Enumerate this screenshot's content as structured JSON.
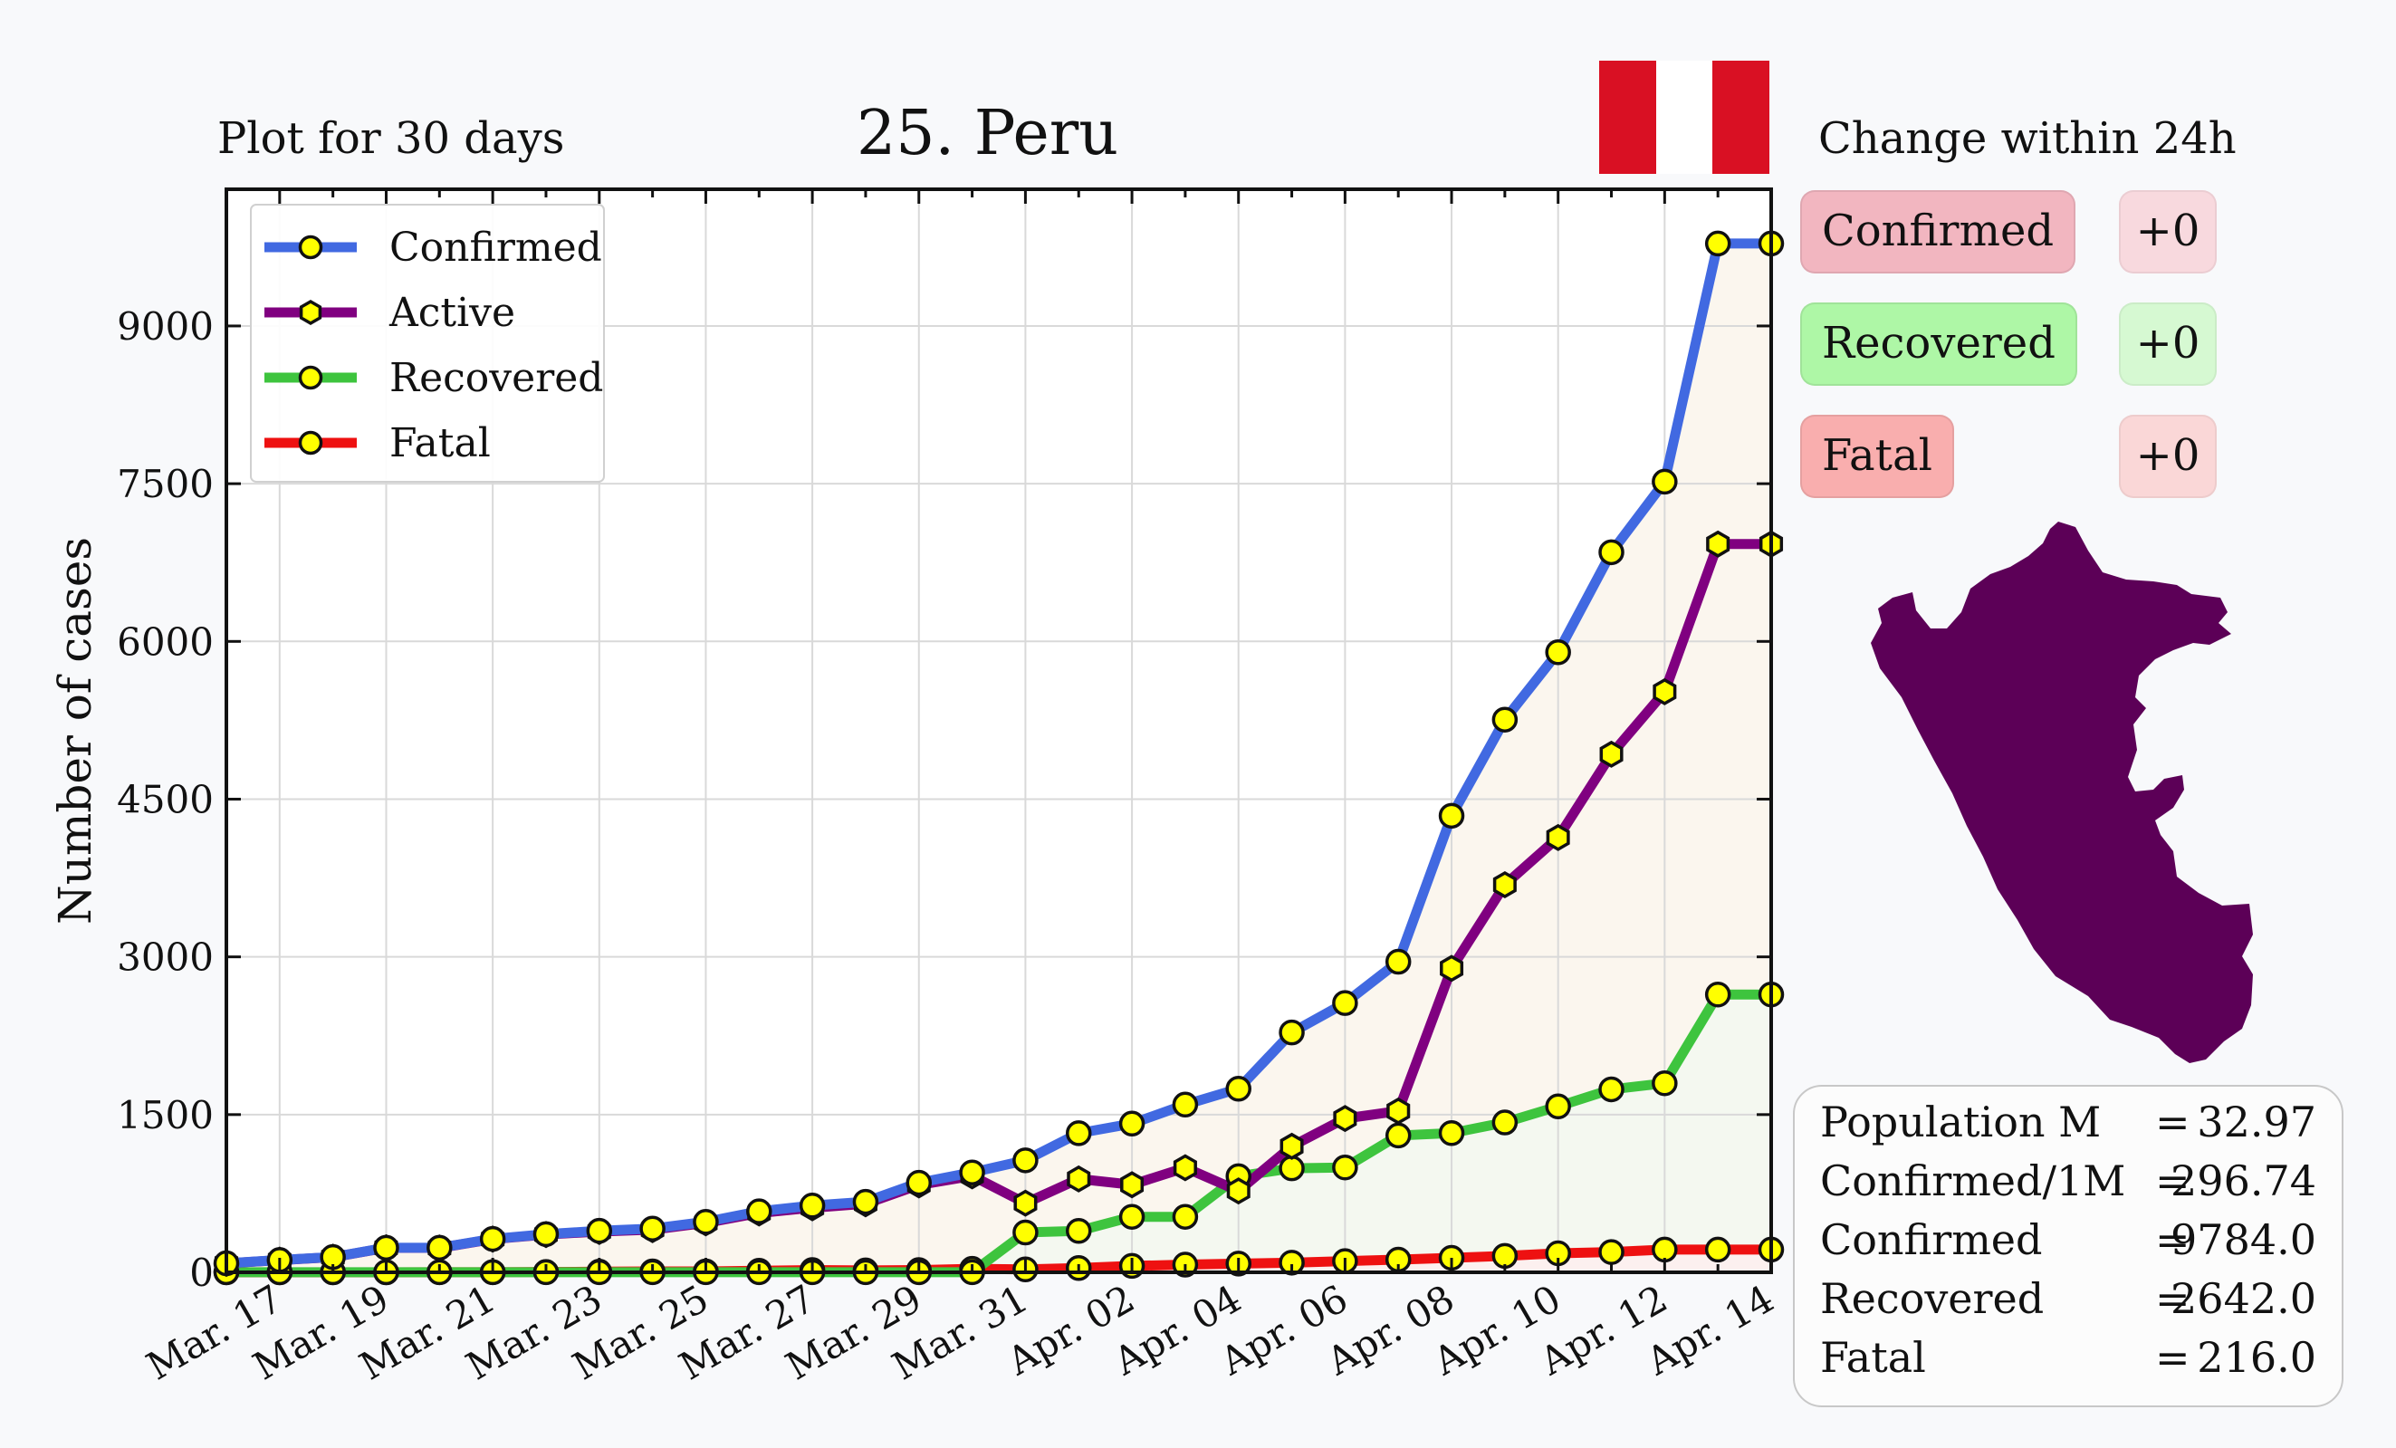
{
  "header": {
    "plot_days": "Plot for 30 days",
    "title": "25. Peru",
    "change_title": "Change within 24h"
  },
  "flag": {
    "colors": [
      "#d91023",
      "#ffffff",
      "#d91023"
    ]
  },
  "changes": [
    {
      "label": "Confirmed",
      "delta": "+0",
      "chip_color": "#f2b6c0",
      "delta_color": "#f8d9de"
    },
    {
      "label": "Recovered",
      "delta": "+0",
      "chip_color": "#aef7a6",
      "delta_color": "#d6f9d2"
    },
    {
      "label": "Fatal",
      "delta": "+0",
      "chip_color": "#f9aeae",
      "delta_color": "#fad7d7"
    }
  ],
  "stats": [
    {
      "key": "Population M",
      "eq": "=",
      "value": "32.97"
    },
    {
      "key": "Confirmed/1M",
      "eq": "=",
      "value": "296.74"
    },
    {
      "key": "Confirmed",
      "eq": "=",
      "value": "9784.0"
    },
    {
      "key": "Recovered",
      "eq": "=",
      "value": "2642.0"
    },
    {
      "key": "Fatal",
      "eq": "=",
      "value": "216.0"
    }
  ],
  "map_color": "#5c0057",
  "chart_data": {
    "type": "line",
    "ylabel": "Number of cases",
    "ylim": [
      0,
      10300
    ],
    "yticks": [
      0,
      1500,
      3000,
      4500,
      6000,
      7500,
      9000
    ],
    "xtick_labels": [
      "Mar. 17",
      "Mar. 19",
      "Mar. 21",
      "Mar. 23",
      "Mar. 25",
      "Mar. 27",
      "Mar. 29",
      "Mar. 31",
      "Apr. 02",
      "Apr. 04",
      "Apr. 06",
      "Apr. 08",
      "Apr. 10",
      "Apr. 12",
      "Apr. 14"
    ],
    "x": [
      "Mar. 16",
      "Mar. 17",
      "Mar. 18",
      "Mar. 19",
      "Mar. 20",
      "Mar. 21",
      "Mar. 22",
      "Mar. 23",
      "Mar. 24",
      "Mar. 25",
      "Mar. 26",
      "Mar. 27",
      "Mar. 28",
      "Mar. 29",
      "Mar. 30",
      "Mar. 31",
      "Apr. 01",
      "Apr. 02",
      "Apr. 03",
      "Apr. 04",
      "Apr. 05",
      "Apr. 06",
      "Apr. 07",
      "Apr. 08",
      "Apr. 09",
      "Apr. 10",
      "Apr. 11",
      "Apr. 12",
      "Apr. 13",
      "Apr. 14"
    ],
    "grid": true,
    "legend_position": "top-left",
    "series": [
      {
        "name": "Confirmed",
        "color": "#4169e1",
        "marker": "circle",
        "values": [
          86,
          117,
          145,
          234,
          234,
          318,
          363,
          395,
          416,
          480,
          580,
          635,
          671,
          852,
          950,
          1065,
          1323,
          1414,
          1595,
          1746,
          2281,
          2561,
          2954,
          4342,
          5256,
          5897,
          6848,
          7519,
          9784,
          9784
        ]
      },
      {
        "name": "Active",
        "color": "#800080",
        "marker": "hexagon",
        "values": [
          85,
          116,
          144,
          233,
          232,
          316,
          359,
          388,
          406,
          470,
          564,
          614,
          652,
          831,
          917,
          658,
          888,
          833,
          995,
          774,
          1199,
          1463,
          1534,
          2890,
          3686,
          4135,
          4927,
          5521,
          6926,
          6926
        ]
      },
      {
        "name": "Recovered",
        "color": "#3ec43e",
        "marker": "circle",
        "values": [
          1,
          1,
          1,
          1,
          1,
          1,
          1,
          1,
          1,
          1,
          1,
          1,
          1,
          1,
          1,
          379,
          394,
          528,
          528,
          914,
          989,
          997,
          1301,
          1324,
          1425,
          1578,
          1740,
          1798,
          2642,
          2642
        ]
      },
      {
        "name": "Fatal",
        "color": "#ee1111",
        "marker": "circle",
        "values": [
          0,
          0,
          0,
          0,
          1,
          1,
          3,
          6,
          9,
          9,
          15,
          21,
          18,
          21,
          33,
          28,
          41,
          61,
          73,
          83,
          92,
          107,
          121,
          138,
          156,
          181,
          193,
          216,
          216,
          216
        ]
      }
    ]
  }
}
